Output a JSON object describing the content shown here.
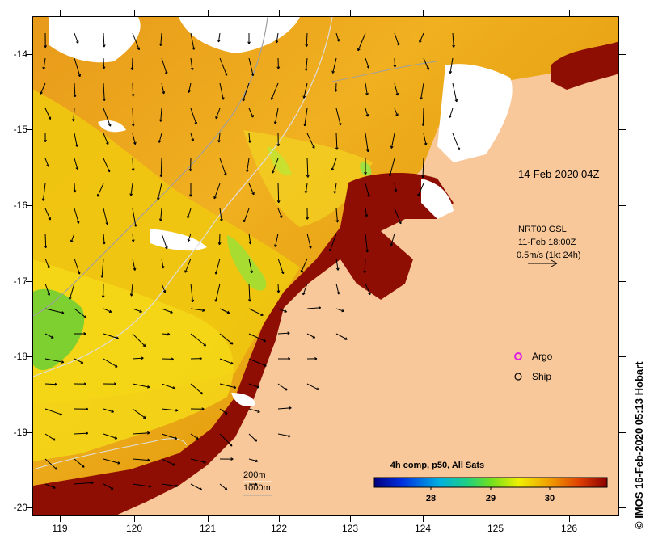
{
  "map": {
    "timestamp": "14-Feb-2020 04Z",
    "y_ticks": [
      "-14",
      "-15",
      "-16",
      "-17",
      "-18",
      "-19",
      "-20"
    ],
    "x_ticks": [
      "119",
      "120",
      "121",
      "122",
      "123",
      "124",
      "125",
      "126"
    ]
  },
  "currents": {
    "line1": "NRT00 GSL",
    "line2": "11-Feb 18:00Z",
    "line3": "0.5m/s (1kt 24h)"
  },
  "legend": {
    "argo": "Argo",
    "ship": "Ship",
    "argo_color": "#e020e0"
  },
  "isobaths": {
    "a": "200m",
    "b": "1000m"
  },
  "colorbar": {
    "title": "4h comp, p50, All Sats",
    "ticks": [
      "28",
      "29",
      "30"
    ]
  },
  "credit": "© IMOS 16-Feb-2020 05:13 Hobart"
}
